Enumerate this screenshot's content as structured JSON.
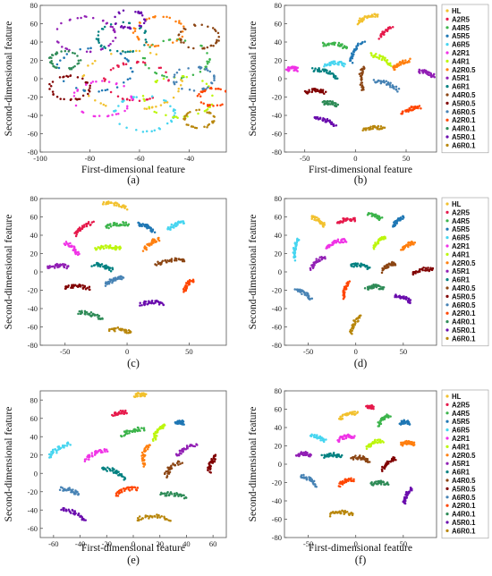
{
  "legend_labels": [
    "HL",
    "A2R5",
    "A4R5",
    "A5R5",
    "A6R5",
    "A2R1",
    "A4R1",
    "A2R0.5",
    "A5R1",
    "A6R1",
    "A4R0.5",
    "A5R0.5",
    "A6R0.5",
    "A2R0.1",
    "A4R0.1",
    "A5R0.1",
    "A6R0.1"
  ],
  "palette": [
    "#f2c12e",
    "#e6194b",
    "#3cb44b",
    "#1f77b4",
    "#46d5f0",
    "#f032e6",
    "#bcf60c",
    "#ff7f0e",
    "#911eb4",
    "#008080",
    "#8b4513",
    "#800000",
    "#4682b4",
    "#ff4500",
    "#2e8b57",
    "#6a0dad",
    "#b8860b",
    "#333333"
  ],
  "chart_data": [
    {
      "type": "scatter",
      "caption": "(a)",
      "xlabel": "First-dimensional feature",
      "ylabel": "Second-dimensional feature",
      "xlim": [
        -100,
        -25
      ],
      "ylim": [
        -80,
        80
      ],
      "xticks": [
        -100,
        -80,
        -60,
        -40
      ],
      "yticks": [
        -80,
        -60,
        -40,
        -20,
        0,
        20,
        40,
        60,
        80
      ],
      "legend": false,
      "layout": "rings",
      "clusters": [
        {
          "x": -63,
          "y": -2,
          "r": 20
        },
        {
          "x": -61,
          "y": -3,
          "r": 13
        },
        {
          "x": -45,
          "y": 22,
          "r": 13
        },
        {
          "x": -78,
          "y": 10,
          "r": 15
        },
        {
          "x": -58,
          "y": -38,
          "r": 12
        },
        {
          "x": -75,
          "y": -22,
          "r": 12
        },
        {
          "x": -44,
          "y": -20,
          "r": 14
        },
        {
          "x": -52,
          "y": 52,
          "r": 10
        },
        {
          "x": -82,
          "y": 48,
          "r": 12
        },
        {
          "x": -67,
          "y": 45,
          "r": 10
        },
        {
          "x": -36,
          "y": 46,
          "r": 8
        },
        {
          "x": -88,
          "y": -10,
          "r": 8
        },
        {
          "x": -38,
          "y": 0,
          "r": 8
        },
        {
          "x": -30,
          "y": -20,
          "r": 6
        },
        {
          "x": -90,
          "y": 20,
          "r": 6
        },
        {
          "x": -64,
          "y": 65,
          "r": 6
        },
        {
          "x": -36,
          "y": -44,
          "r": 6
        }
      ]
    },
    {
      "type": "scatter",
      "caption": "(b)",
      "xlabel": "First-dimensional feature",
      "ylabel": "Second-dimensional feature",
      "xlim": [
        -70,
        80
      ],
      "ylim": [
        -80,
        80
      ],
      "xticks": [
        -50,
        0,
        50
      ],
      "yticks": [
        -80,
        -60,
        -40,
        -20,
        0,
        20,
        40,
        60,
        80
      ],
      "legend": true,
      "clusters": [
        {
          "x": 12,
          "y": 65,
          "a": 20,
          "len": 20
        },
        {
          "x": 30,
          "y": 50,
          "a": 40,
          "len": 15
        },
        {
          "x": -20,
          "y": 35,
          "a": -10,
          "len": 25
        },
        {
          "x": 2,
          "y": 30,
          "a": 60,
          "len": 25
        },
        {
          "x": -20,
          "y": 15,
          "a": 0,
          "len": 20
        },
        {
          "x": -62,
          "y": 10,
          "a": 0,
          "len": 10
        },
        {
          "x": 25,
          "y": 20,
          "a": -30,
          "len": 22
        },
        {
          "x": 45,
          "y": 15,
          "a": 30,
          "len": 18
        },
        {
          "x": 70,
          "y": 5,
          "a": -20,
          "len": 16
        },
        {
          "x": -30,
          "y": 5,
          "a": -20,
          "len": 25
        },
        {
          "x": 8,
          "y": 0,
          "a": 90,
          "len": 25
        },
        {
          "x": -40,
          "y": -15,
          "a": 0,
          "len": 20
        },
        {
          "x": 30,
          "y": -8,
          "a": -20,
          "len": 25
        },
        {
          "x": 55,
          "y": -35,
          "a": 20,
          "len": 20
        },
        {
          "x": -25,
          "y": -28,
          "a": -10,
          "len": 14
        },
        {
          "x": -30,
          "y": -48,
          "a": -20,
          "len": 22
        },
        {
          "x": 18,
          "y": -55,
          "a": 0,
          "len": 20
        }
      ]
    },
    {
      "type": "scatter",
      "caption": "(c)",
      "xlabel": "",
      "ylabel": "Second-dimensional feature",
      "xlim": [
        -70,
        80
      ],
      "ylim": [
        -80,
        80
      ],
      "xticks": [
        -50,
        0,
        50
      ],
      "yticks": [
        -80,
        -60,
        -40,
        -20,
        0,
        20,
        40,
        60,
        80
      ],
      "legend": false,
      "clusters": [
        {
          "x": -10,
          "y": 72,
          "a": -10,
          "len": 20
        },
        {
          "x": -35,
          "y": 47,
          "a": 40,
          "len": 18
        },
        {
          "x": -8,
          "y": 50,
          "a": 10,
          "len": 18
        },
        {
          "x": 15,
          "y": 48,
          "a": -30,
          "len": 15
        },
        {
          "x": 40,
          "y": 50,
          "a": 30,
          "len": 15
        },
        {
          "x": -45,
          "y": 25,
          "a": -50,
          "len": 16
        },
        {
          "x": -15,
          "y": 25,
          "a": 0,
          "len": 20
        },
        {
          "x": 20,
          "y": 30,
          "a": 40,
          "len": 16
        },
        {
          "x": -55,
          "y": 5,
          "a": 0,
          "len": 16
        },
        {
          "x": -20,
          "y": 5,
          "a": -20,
          "len": 16
        },
        {
          "x": 35,
          "y": 10,
          "a": 10,
          "len": 25
        },
        {
          "x": -40,
          "y": -18,
          "a": 0,
          "len": 20
        },
        {
          "x": -10,
          "y": -10,
          "a": 30,
          "len": 16
        },
        {
          "x": 50,
          "y": -15,
          "a": 60,
          "len": 14
        },
        {
          "x": -30,
          "y": -48,
          "a": -20,
          "len": 20
        },
        {
          "x": 20,
          "y": -35,
          "a": 0,
          "len": 18
        },
        {
          "x": -5,
          "y": -65,
          "a": -10,
          "len": 18
        }
      ]
    },
    {
      "type": "scatter",
      "caption": "(d)",
      "xlabel": "",
      "ylabel": "Second-dimensional feature",
      "xlim": [
        -75,
        85
      ],
      "ylim": [
        -80,
        80
      ],
      "xticks": [
        -50,
        0,
        50
      ],
      "yticks": [
        -80,
        -60,
        -40,
        -20,
        0,
        20,
        40,
        60,
        80
      ],
      "legend": true,
      "clusters": [
        {
          "x": -40,
          "y": 55,
          "a": -30,
          "len": 16
        },
        {
          "x": -10,
          "y": 55,
          "a": 10,
          "len": 18
        },
        {
          "x": 20,
          "y": 60,
          "a": -20,
          "len": 14
        },
        {
          "x": 45,
          "y": 55,
          "a": 40,
          "len": 14
        },
        {
          "x": -62,
          "y": 25,
          "a": 80,
          "len": 20
        },
        {
          "x": -20,
          "y": 30,
          "a": 20,
          "len": 22
        },
        {
          "x": 25,
          "y": 32,
          "a": 40,
          "len": 16
        },
        {
          "x": 55,
          "y": 28,
          "a": 30,
          "len": 14
        },
        {
          "x": -40,
          "y": 10,
          "a": 40,
          "len": 18
        },
        {
          "x": 5,
          "y": 5,
          "a": -10,
          "len": 20
        },
        {
          "x": 35,
          "y": 5,
          "a": 30,
          "len": 16
        },
        {
          "x": 70,
          "y": 0,
          "a": 10,
          "len": 22
        },
        {
          "x": -55,
          "y": -25,
          "a": -30,
          "len": 18
        },
        {
          "x": -10,
          "y": -20,
          "a": 70,
          "len": 16
        },
        {
          "x": 20,
          "y": -18,
          "a": 0,
          "len": 18
        },
        {
          "x": 50,
          "y": -30,
          "a": -20,
          "len": 18
        },
        {
          "x": 0,
          "y": -58,
          "a": 60,
          "len": 20
        }
      ]
    },
    {
      "type": "scatter",
      "caption": "(e)",
      "xlabel": "First-dimensional feature",
      "ylabel": "Second-dimensional feature",
      "xlim": [
        -70,
        70
      ],
      "ylim": [
        -70,
        90
      ],
      "xticks": [
        -60,
        -40,
        -20,
        0,
        20,
        40,
        60
      ],
      "yticks": [
        -60,
        -40,
        -20,
        0,
        20,
        40,
        60,
        80
      ],
      "legend": false,
      "clusters": [
        {
          "x": 5,
          "y": 85,
          "a": 0,
          "len": 8
        },
        {
          "x": -10,
          "y": 65,
          "a": 20,
          "len": 10
        },
        {
          "x": 0,
          "y": 45,
          "a": 20,
          "len": 18
        },
        {
          "x": 35,
          "y": 55,
          "a": 0,
          "len": 6
        },
        {
          "x": -55,
          "y": 25,
          "a": 40,
          "len": 20
        },
        {
          "x": -28,
          "y": 20,
          "a": 30,
          "len": 18
        },
        {
          "x": 20,
          "y": 45,
          "a": 60,
          "len": 18
        },
        {
          "x": 10,
          "y": 20,
          "a": 80,
          "len": 20
        },
        {
          "x": 40,
          "y": 25,
          "a": 40,
          "len": 18
        },
        {
          "x": -15,
          "y": 0,
          "a": -30,
          "len": 20
        },
        {
          "x": 30,
          "y": 5,
          "a": 50,
          "len": 18
        },
        {
          "x": 60,
          "y": 10,
          "a": 70,
          "len": 16
        },
        {
          "x": -48,
          "y": -20,
          "a": -20,
          "len": 16
        },
        {
          "x": -5,
          "y": -20,
          "a": 20,
          "len": 18
        },
        {
          "x": 30,
          "y": -25,
          "a": -10,
          "len": 20
        },
        {
          "x": -45,
          "y": -45,
          "a": -30,
          "len": 20
        },
        {
          "x": 15,
          "y": -50,
          "a": 0,
          "len": 25
        }
      ]
    },
    {
      "type": "scatter",
      "caption": "(f)",
      "xlabel": "First-dimensional feature",
      "ylabel": "Second-dimensional feature",
      "xlim": [
        -75,
        85
      ],
      "ylim": [
        -80,
        80
      ],
      "xticks": [
        -50,
        0,
        50
      ],
      "yticks": [
        -80,
        -60,
        -40,
        -20,
        0,
        20,
        40,
        60,
        80
      ],
      "legend": true,
      "clusters": [
        {
          "x": -8,
          "y": 52,
          "a": 20,
          "len": 20
        },
        {
          "x": 15,
          "y": 62,
          "a": 0,
          "len": 6
        },
        {
          "x": 30,
          "y": 48,
          "a": 40,
          "len": 16
        },
        {
          "x": 52,
          "y": 45,
          "a": 0,
          "len": 10
        },
        {
          "x": -40,
          "y": 28,
          "a": -20,
          "len": 16
        },
        {
          "x": -10,
          "y": 28,
          "a": 10,
          "len": 18
        },
        {
          "x": 20,
          "y": 22,
          "a": 20,
          "len": 18
        },
        {
          "x": 55,
          "y": 22,
          "a": 0,
          "len": 14
        },
        {
          "x": -55,
          "y": 10,
          "a": 0,
          "len": 14
        },
        {
          "x": -25,
          "y": 8,
          "a": 0,
          "len": 20
        },
        {
          "x": 5,
          "y": 5,
          "a": -10,
          "len": 18
        },
        {
          "x": 35,
          "y": 0,
          "a": 40,
          "len": 18
        },
        {
          "x": -50,
          "y": -18,
          "a": -30,
          "len": 18
        },
        {
          "x": -10,
          "y": -20,
          "a": 20,
          "len": 16
        },
        {
          "x": 25,
          "y": -22,
          "a": 0,
          "len": 18
        },
        {
          "x": 55,
          "y": -35,
          "a": 60,
          "len": 16
        },
        {
          "x": -15,
          "y": -55,
          "a": 0,
          "len": 24
        }
      ]
    }
  ]
}
